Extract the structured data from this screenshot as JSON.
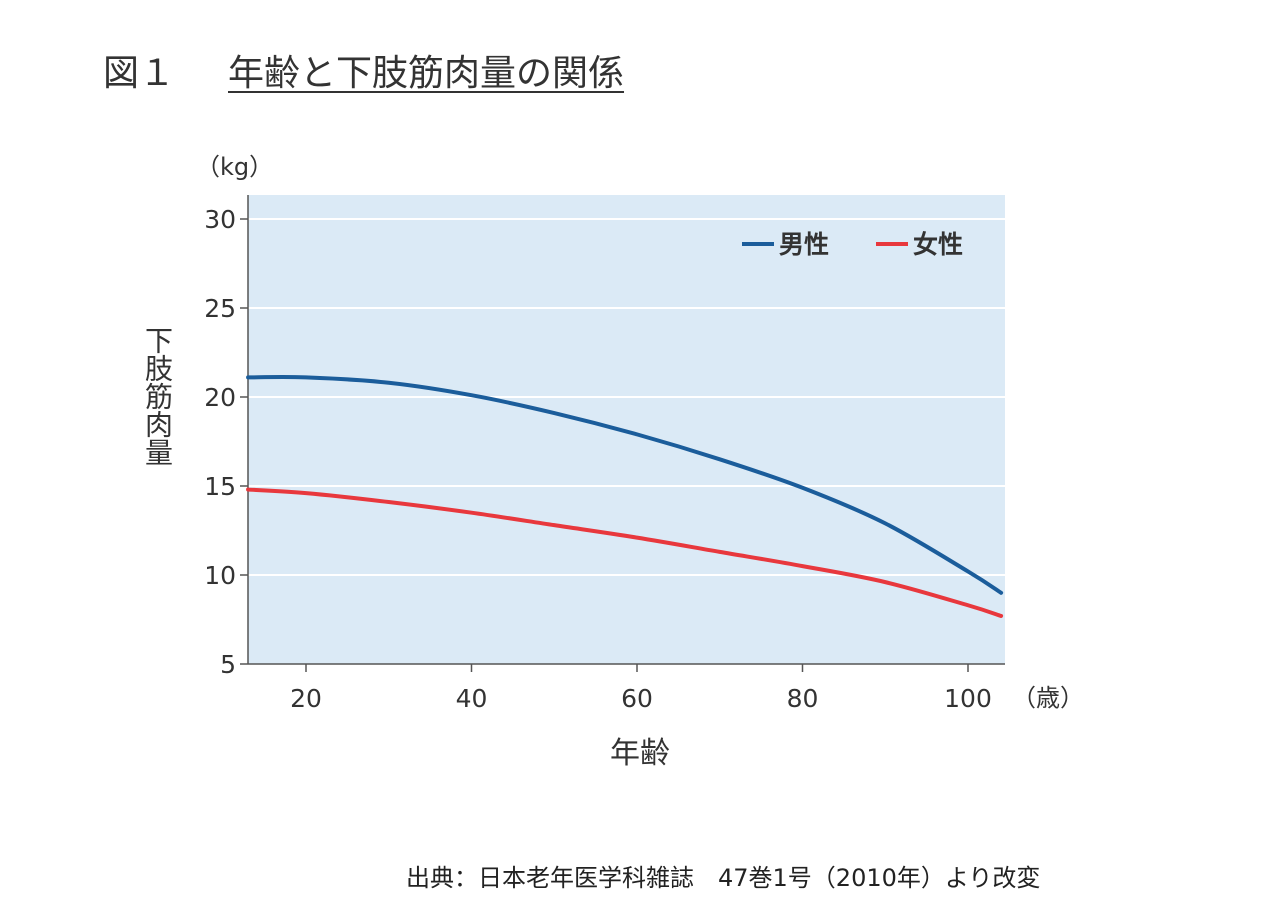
{
  "figure": {
    "label": "図１",
    "title": "年齢と下肢筋肉量の関係"
  },
  "source": "出典：日本老年医学科雑誌　47巻1号（2010年）より改変",
  "chart_data": {
    "type": "line",
    "xlabel": "年齢",
    "x_unit": "（歳）",
    "ylabel": "下肢筋肉量",
    "y_unit": "（kg）",
    "xlim": [
      13,
      104
    ],
    "ylim": [
      5,
      31
    ],
    "x_ticks": [
      20,
      40,
      60,
      80,
      100
    ],
    "y_ticks": [
      5,
      10,
      15,
      20,
      25,
      30
    ],
    "grid": "horizontal",
    "legend_position": "top-right",
    "background_color": "#dbeaf6",
    "series": [
      {
        "name": "男性",
        "color": "#1b5d9b",
        "x": [
          13,
          20,
          30,
          40,
          50,
          60,
          70,
          80,
          90,
          100,
          104
        ],
        "y": [
          21.1,
          21.1,
          20.8,
          20.1,
          19.1,
          17.9,
          16.5,
          14.9,
          12.9,
          10.2,
          9.0
        ]
      },
      {
        "name": "女性",
        "color": "#e8383d",
        "x": [
          13,
          20,
          30,
          40,
          50,
          60,
          70,
          80,
          90,
          100,
          104
        ],
        "y": [
          14.8,
          14.6,
          14.1,
          13.5,
          12.8,
          12.1,
          11.3,
          10.5,
          9.6,
          8.3,
          7.7
        ]
      }
    ]
  }
}
